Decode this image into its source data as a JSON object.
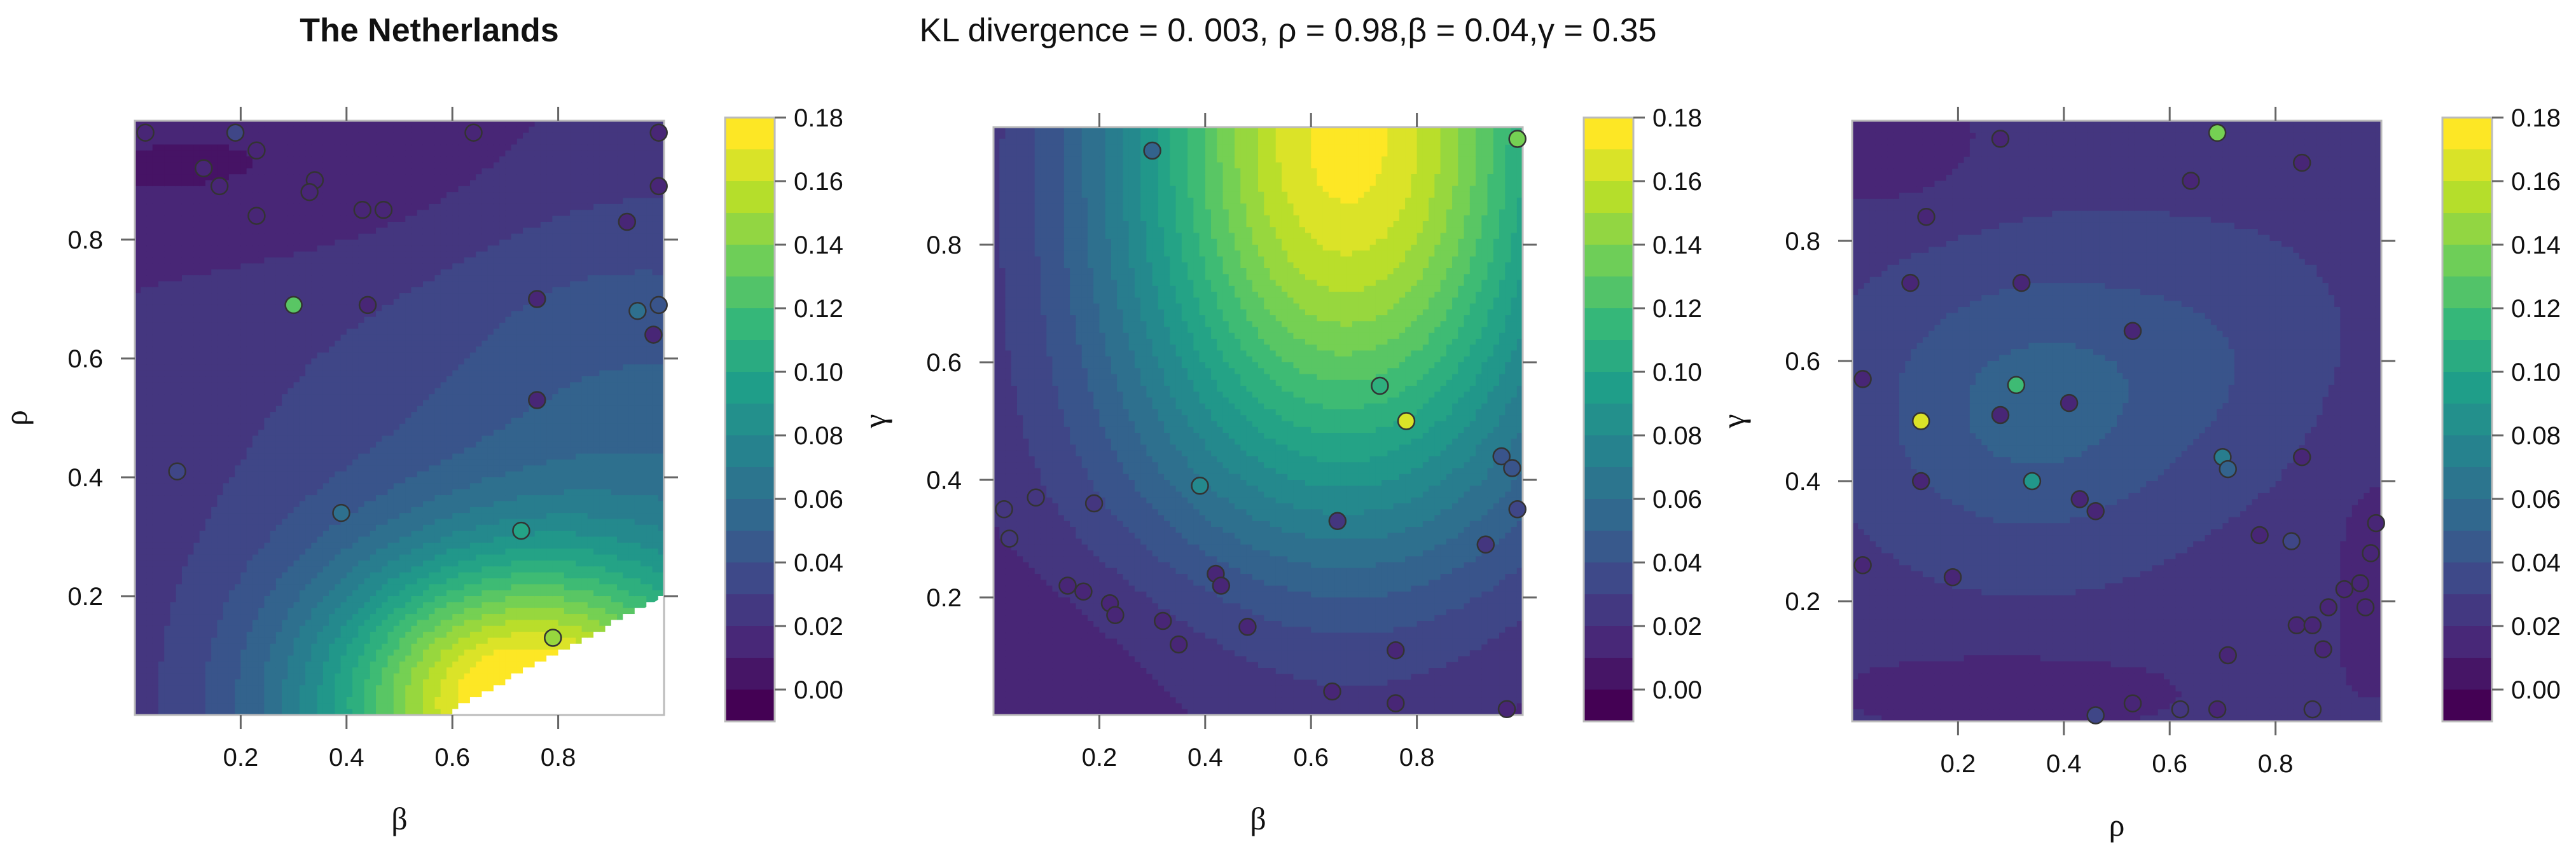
{
  "header": {
    "title": "The Netherlands",
    "subtitle": "KL divergence = 0. 003, ρ = 0.98,β = 0.04,γ = 0.35"
  },
  "colors": {
    "viridis": [
      "#440154",
      "#482878",
      "#3e4989",
      "#31688e",
      "#26828e",
      "#1f9e89",
      "#35b779",
      "#6ece58",
      "#b5de2b",
      "#fde725"
    ],
    "point_stroke": "#333333",
    "axis": "#666666",
    "text": "#111111"
  },
  "chart_data": [
    {
      "type": "heatmap",
      "xlabel": "β",
      "ylabel": "ρ",
      "xlim": [
        0,
        1
      ],
      "ylim": [
        0,
        1
      ],
      "x_ticks": [
        "0.2",
        "0.4",
        "0.6",
        "0.8"
      ],
      "y_ticks": [
        "0.2",
        "0.4",
        "0.6",
        "0.8"
      ],
      "colorbar": {
        "min": -0.01,
        "max": 0.18,
        "ticks": [
          "0.18",
          "0.16",
          "0.14",
          "0.12",
          "0.10",
          "0.08",
          "0.06",
          "0.04",
          "0.02",
          "0.00"
        ]
      },
      "masked_region": "bottom-right",
      "points": [
        {
          "x": 0.02,
          "y": 0.98,
          "v": 0.01
        },
        {
          "x": 0.19,
          "y": 0.98,
          "v": 0.03
        },
        {
          "x": 0.23,
          "y": 0.95,
          "v": 0.01
        },
        {
          "x": 0.13,
          "y": 0.92,
          "v": 0.01
        },
        {
          "x": 0.16,
          "y": 0.89,
          "v": 0.01
        },
        {
          "x": 0.34,
          "y": 0.9,
          "v": 0.01
        },
        {
          "x": 0.33,
          "y": 0.88,
          "v": 0.01
        },
        {
          "x": 0.43,
          "y": 0.85,
          "v": 0.01
        },
        {
          "x": 0.47,
          "y": 0.85,
          "v": 0.01
        },
        {
          "x": 0.23,
          "y": 0.84,
          "v": 0.01
        },
        {
          "x": 0.64,
          "y": 0.98,
          "v": 0.01
        },
        {
          "x": 0.99,
          "y": 0.98,
          "v": 0.01
        },
        {
          "x": 0.93,
          "y": 0.83,
          "v": 0.01
        },
        {
          "x": 0.99,
          "y": 0.89,
          "v": 0.01
        },
        {
          "x": 0.3,
          "y": 0.69,
          "v": 0.13
        },
        {
          "x": 0.44,
          "y": 0.69,
          "v": 0.01
        },
        {
          "x": 0.76,
          "y": 0.7,
          "v": 0.01
        },
        {
          "x": 0.95,
          "y": 0.68,
          "v": 0.06
        },
        {
          "x": 0.99,
          "y": 0.69,
          "v": 0.04
        },
        {
          "x": 0.98,
          "y": 0.64,
          "v": 0.01
        },
        {
          "x": 0.76,
          "y": 0.53,
          "v": 0.01
        },
        {
          "x": 0.08,
          "y": 0.41,
          "v": 0.03
        },
        {
          "x": 0.39,
          "y": 0.34,
          "v": 0.06
        },
        {
          "x": 0.73,
          "y": 0.31,
          "v": 0.1
        },
        {
          "x": 0.79,
          "y": 0.13,
          "v": 0.15
        }
      ]
    },
    {
      "type": "heatmap",
      "xlabel": "β",
      "ylabel": "γ",
      "xlim": [
        0,
        1
      ],
      "ylim": [
        0,
        1
      ],
      "x_ticks": [
        "0.2",
        "0.4",
        "0.6",
        "0.8"
      ],
      "y_ticks": [
        "0.2",
        "0.4",
        "0.6",
        "0.8"
      ],
      "colorbar": {
        "min": -0.01,
        "max": 0.18,
        "ticks": [
          "0.18",
          "0.16",
          "0.14",
          "0.12",
          "0.10",
          "0.08",
          "0.06",
          "0.04",
          "0.02",
          "0.00"
        ]
      },
      "points": [
        {
          "x": 0.3,
          "y": 0.96,
          "v": 0.05
        },
        {
          "x": 0.99,
          "y": 0.98,
          "v": 0.14
        },
        {
          "x": 0.73,
          "y": 0.56,
          "v": 0.11
        },
        {
          "x": 0.78,
          "y": 0.5,
          "v": 0.17
        },
        {
          "x": 0.39,
          "y": 0.39,
          "v": 0.08
        },
        {
          "x": 0.96,
          "y": 0.44,
          "v": 0.04
        },
        {
          "x": 0.98,
          "y": 0.42,
          "v": 0.04
        },
        {
          "x": 0.99,
          "y": 0.35,
          "v": 0.03
        },
        {
          "x": 0.93,
          "y": 0.29,
          "v": 0.02
        },
        {
          "x": 0.65,
          "y": 0.33,
          "v": 0.02
        },
        {
          "x": 0.02,
          "y": 0.35,
          "v": 0.02
        },
        {
          "x": 0.03,
          "y": 0.3,
          "v": 0.02
        },
        {
          "x": 0.08,
          "y": 0.37,
          "v": 0.02
        },
        {
          "x": 0.19,
          "y": 0.36,
          "v": 0.02
        },
        {
          "x": 0.14,
          "y": 0.22,
          "v": 0.01
        },
        {
          "x": 0.17,
          "y": 0.21,
          "v": 0.01
        },
        {
          "x": 0.22,
          "y": 0.19,
          "v": 0.01
        },
        {
          "x": 0.23,
          "y": 0.17,
          "v": 0.01
        },
        {
          "x": 0.32,
          "y": 0.16,
          "v": 0.01
        },
        {
          "x": 0.35,
          "y": 0.12,
          "v": 0.01
        },
        {
          "x": 0.42,
          "y": 0.24,
          "v": 0.01
        },
        {
          "x": 0.43,
          "y": 0.22,
          "v": 0.01
        },
        {
          "x": 0.48,
          "y": 0.15,
          "v": 0.01
        },
        {
          "x": 0.76,
          "y": 0.11,
          "v": 0.01
        },
        {
          "x": 0.64,
          "y": 0.04,
          "v": 0.01
        },
        {
          "x": 0.76,
          "y": 0.02,
          "v": 0.01
        },
        {
          "x": 0.97,
          "y": 0.01,
          "v": 0.01
        }
      ]
    },
    {
      "type": "heatmap",
      "xlabel": "ρ",
      "ylabel": "γ",
      "xlim": [
        0,
        1
      ],
      "ylim": [
        0,
        1
      ],
      "x_ticks": [
        "0.2",
        "0.4",
        "0.6",
        "0.8"
      ],
      "y_ticks": [
        "0.2",
        "0.4",
        "0.6",
        "0.8"
      ],
      "colorbar": {
        "min": -0.01,
        "max": 0.18,
        "ticks": [
          "0.18",
          "0.16",
          "0.14",
          "0.12",
          "0.10",
          "0.08",
          "0.06",
          "0.04",
          "0.02",
          "0.00"
        ]
      },
      "points": [
        {
          "x": 0.13,
          "y": 0.5,
          "v": 0.17
        },
        {
          "x": 0.31,
          "y": 0.56,
          "v": 0.12
        },
        {
          "x": 0.69,
          "y": 0.98,
          "v": 0.14
        },
        {
          "x": 0.34,
          "y": 0.4,
          "v": 0.09
        },
        {
          "x": 0.7,
          "y": 0.44,
          "v": 0.07
        },
        {
          "x": 0.71,
          "y": 0.42,
          "v": 0.05
        },
        {
          "x": 0.13,
          "y": 0.4,
          "v": 0.01
        },
        {
          "x": 0.41,
          "y": 0.53,
          "v": 0.01
        },
        {
          "x": 0.28,
          "y": 0.51,
          "v": 0.01
        },
        {
          "x": 0.14,
          "y": 0.84,
          "v": 0.01
        },
        {
          "x": 0.28,
          "y": 0.97,
          "v": 0.01
        },
        {
          "x": 0.64,
          "y": 0.9,
          "v": 0.01
        },
        {
          "x": 0.85,
          "y": 0.93,
          "v": 0.01
        },
        {
          "x": 0.53,
          "y": 0.65,
          "v": 0.01
        },
        {
          "x": 0.32,
          "y": 0.73,
          "v": 0.01
        },
        {
          "x": 0.11,
          "y": 0.73,
          "v": 0.01
        },
        {
          "x": 0.02,
          "y": 0.57,
          "v": 0.01
        },
        {
          "x": 0.19,
          "y": 0.24,
          "v": 0.01
        },
        {
          "x": 0.43,
          "y": 0.37,
          "v": 0.01
        },
        {
          "x": 0.46,
          "y": 0.35,
          "v": 0.01
        },
        {
          "x": 0.85,
          "y": 0.44,
          "v": 0.01
        },
        {
          "x": 0.83,
          "y": 0.3,
          "v": 0.03
        },
        {
          "x": 0.77,
          "y": 0.31,
          "v": 0.01
        },
        {
          "x": 0.71,
          "y": 0.11,
          "v": 0.01
        },
        {
          "x": 0.84,
          "y": 0.16,
          "v": 0.01
        },
        {
          "x": 0.87,
          "y": 0.16,
          "v": 0.01
        },
        {
          "x": 0.89,
          "y": 0.12,
          "v": 0.01
        },
        {
          "x": 0.9,
          "y": 0.19,
          "v": 0.01
        },
        {
          "x": 0.93,
          "y": 0.22,
          "v": 0.01
        },
        {
          "x": 0.97,
          "y": 0.19,
          "v": 0.01
        },
        {
          "x": 0.96,
          "y": 0.23,
          "v": 0.01
        },
        {
          "x": 0.98,
          "y": 0.28,
          "v": 0.01
        },
        {
          "x": 0.99,
          "y": 0.33,
          "v": 0.01
        },
        {
          "x": 0.53,
          "y": 0.03,
          "v": 0.01
        },
        {
          "x": 0.62,
          "y": 0.02,
          "v": 0.02
        },
        {
          "x": 0.69,
          "y": 0.02,
          "v": 0.01
        },
        {
          "x": 0.46,
          "y": 0.01,
          "v": 0.03
        },
        {
          "x": 0.87,
          "y": 0.02,
          "v": 0.02
        },
        {
          "x": 0.02,
          "y": 0.26,
          "v": 0.01
        }
      ]
    }
  ]
}
